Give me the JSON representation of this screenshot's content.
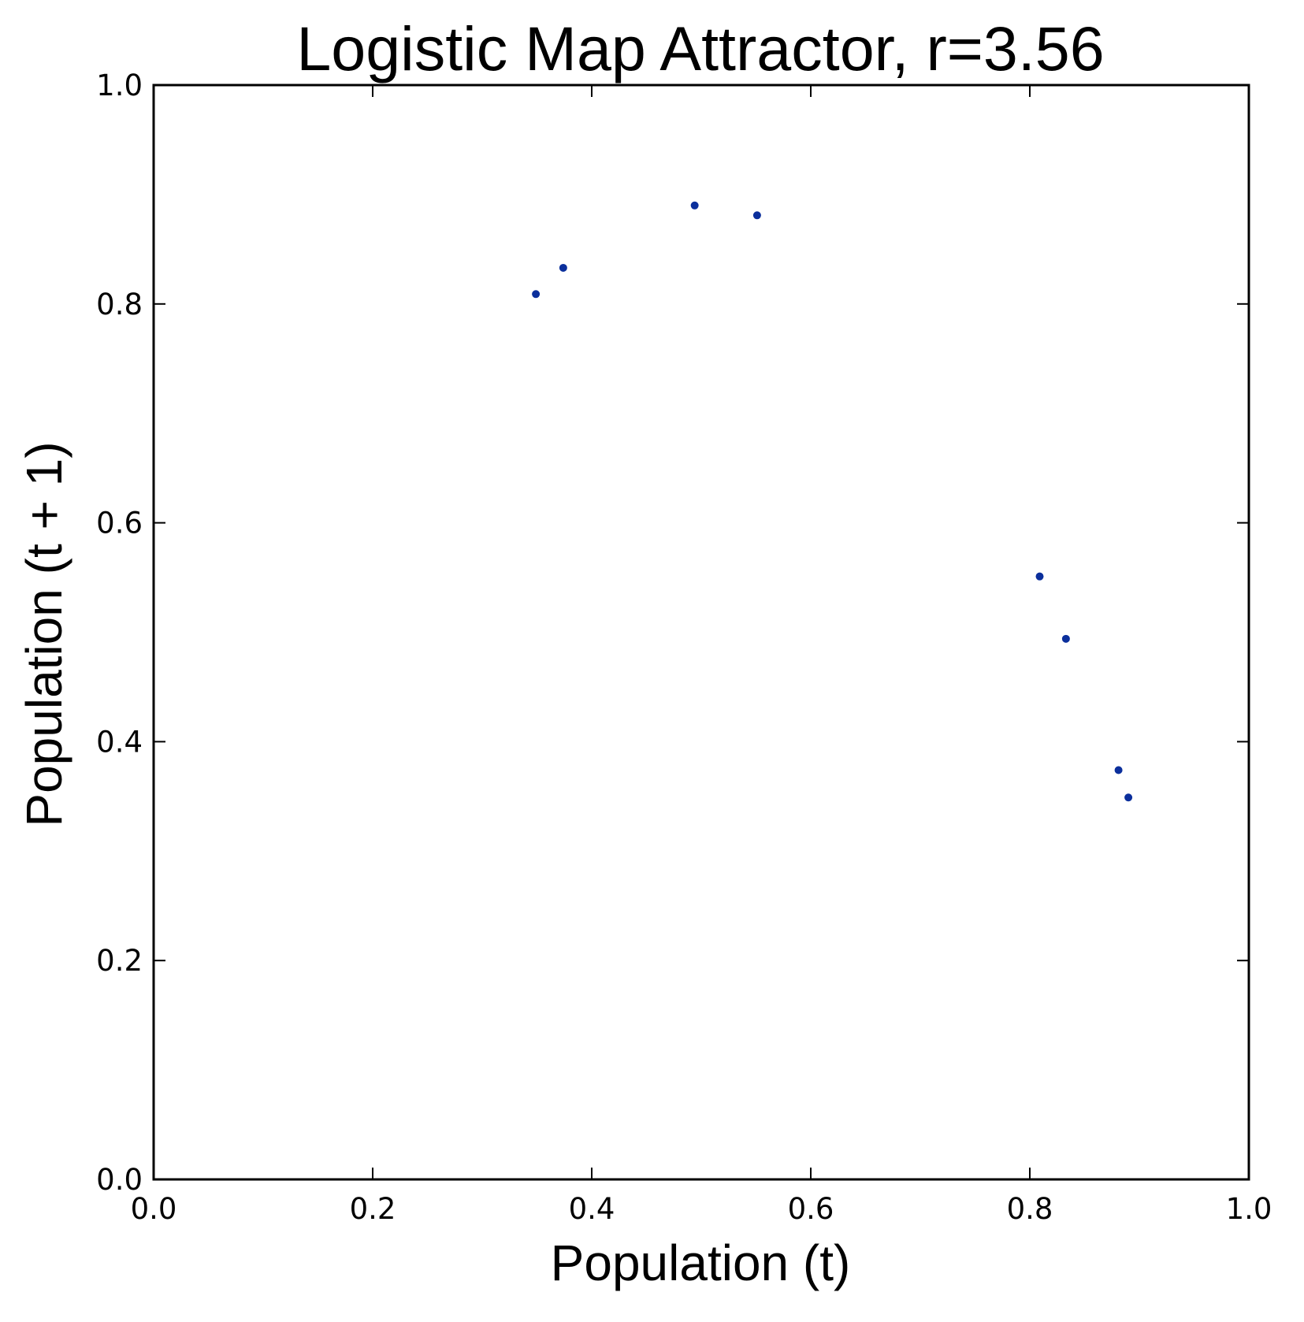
{
  "chart_data": {
    "type": "scatter",
    "title": "Logistic Map Attractor, r=3.56",
    "xlabel": "Population (t)",
    "ylabel": "Population (t + 1)",
    "xlim": [
      0.0,
      1.0
    ],
    "ylim": [
      0.0,
      1.0
    ],
    "xticks": [
      "0.0",
      "0.2",
      "0.4",
      "0.6",
      "0.8",
      "1.0"
    ],
    "yticks": [
      "0.0",
      "0.2",
      "0.4",
      "0.6",
      "0.8",
      "1.0"
    ],
    "grid": false,
    "legend": "none",
    "marker_color": "#0b2f9c",
    "series": [
      {
        "x": [
          0.349,
          0.374,
          0.494,
          0.551,
          0.809,
          0.833,
          0.881,
          0.89
        ],
        "y": [
          0.809,
          0.833,
          0.89,
          0.881,
          0.551,
          0.494,
          0.374,
          0.349
        ]
      }
    ]
  }
}
